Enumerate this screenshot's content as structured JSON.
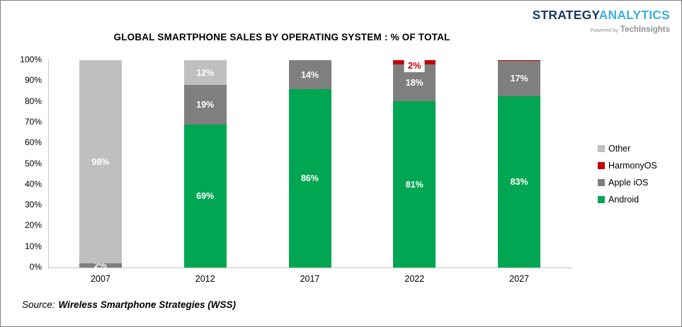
{
  "page": {
    "background": "#ffffff",
    "border_color": "#7f7f7f"
  },
  "logo": {
    "strategy": {
      "text": "STRATEGY",
      "color": "#1c3866"
    },
    "analytics": {
      "text": "ANALYTICS",
      "color": "#3fb0dc"
    },
    "powered_by": {
      "text": "Powered by",
      "color": "#8e9396"
    },
    "techinsights": {
      "text": "TechInsights",
      "color": "#8e9396"
    }
  },
  "source": {
    "label": "Source:",
    "name": "Wireless Smartphone Strategies (WSS)"
  },
  "chart_data": {
    "type": "bar",
    "variant": "stacked-column",
    "title": "GLOBAL SMARTPHONE SALES BY OPERATING SYSTEM : % OF TOTAL",
    "xlabel": "",
    "ylabel": "",
    "ylim": [
      0,
      100
    ],
    "y_ticks": [
      "0%",
      "10%",
      "20%",
      "30%",
      "40%",
      "50%",
      "60%",
      "70%",
      "80%",
      "90%",
      "100%"
    ],
    "grid": false,
    "legend_position": "right",
    "legend": [
      {
        "label": "Other",
        "color": "#bfbfbf"
      },
      {
        "label": "HarmonyOS",
        "color": "#c00000"
      },
      {
        "label": "Apple iOS",
        "color": "#7f7f7f"
      },
      {
        "label": "Android",
        "color": "#00a651"
      }
    ],
    "series_colors": {
      "Android": "#00a651",
      "Apple iOS": "#7f7f7f",
      "HarmonyOS": "#c00000",
      "Other": "#bfbfbf"
    },
    "categories": [
      "2007",
      "2012",
      "2017",
      "2022",
      "2027"
    ],
    "bars": [
      {
        "category": "2007",
        "segments": [
          {
            "series": "Apple iOS",
            "value": 2,
            "label": "2%"
          },
          {
            "series": "Other",
            "value": 98,
            "label": "98%"
          }
        ]
      },
      {
        "category": "2012",
        "segments": [
          {
            "series": "Android",
            "value": 69,
            "label": "69%"
          },
          {
            "series": "Apple iOS",
            "value": 19,
            "label": "19%"
          },
          {
            "series": "Other",
            "value": 12,
            "label": "12%"
          }
        ]
      },
      {
        "category": "2017",
        "segments": [
          {
            "series": "Android",
            "value": 86,
            "label": "86%"
          },
          {
            "series": "Apple iOS",
            "value": 14,
            "label": "14%"
          }
        ]
      },
      {
        "category": "2022",
        "segments": [
          {
            "series": "Android",
            "value": 81,
            "label": "81%"
          },
          {
            "series": "Apple iOS",
            "value": 18,
            "label": "18%"
          },
          {
            "series": "HarmonyOS",
            "value": 2,
            "label": "2%",
            "label_style": "callout"
          }
        ]
      },
      {
        "category": "2027",
        "segments": [
          {
            "series": "Android",
            "value": 83,
            "label": "83%"
          },
          {
            "series": "Apple iOS",
            "value": 17,
            "label": "17%"
          },
          {
            "series": "HarmonyOS",
            "value": 0.5,
            "label": ""
          }
        ]
      }
    ]
  }
}
